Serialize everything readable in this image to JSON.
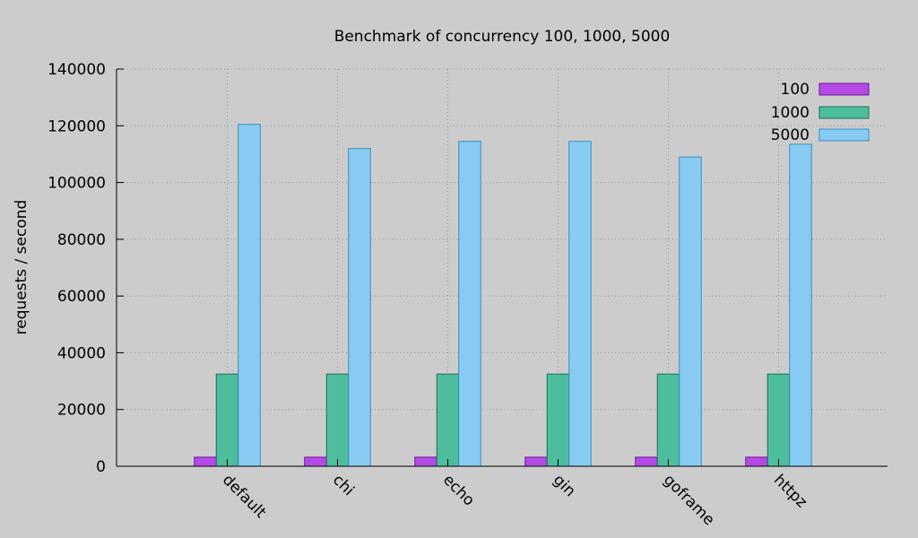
{
  "chart_data": {
    "type": "bar",
    "title": "Benchmark of concurrency 100, 1000, 5000",
    "xlabel": "",
    "ylabel": "requests / second",
    "ylim": [
      0,
      140000
    ],
    "yticks": [
      0,
      20000,
      40000,
      60000,
      80000,
      100000,
      120000,
      140000
    ],
    "grid": true,
    "legend_position": "top-right",
    "categories": [
      "default",
      "chi",
      "echo",
      "gin",
      "goframe",
      "httpz"
    ],
    "series": [
      {
        "name": "100",
        "color": "#b44ae6",
        "stroke": "#6a1b9a",
        "values": [
          3200,
          3200,
          3200,
          3200,
          3200,
          3200
        ]
      },
      {
        "name": "1000",
        "color": "#4dbd9e",
        "stroke": "#1f6f58",
        "values": [
          32500,
          32500,
          32500,
          32500,
          32500,
          32500
        ]
      },
      {
        "name": "5000",
        "color": "#88cbf2",
        "stroke": "#3a8fbf",
        "values": [
          120500,
          112000,
          114500,
          114500,
          109000,
          113500
        ]
      }
    ]
  }
}
